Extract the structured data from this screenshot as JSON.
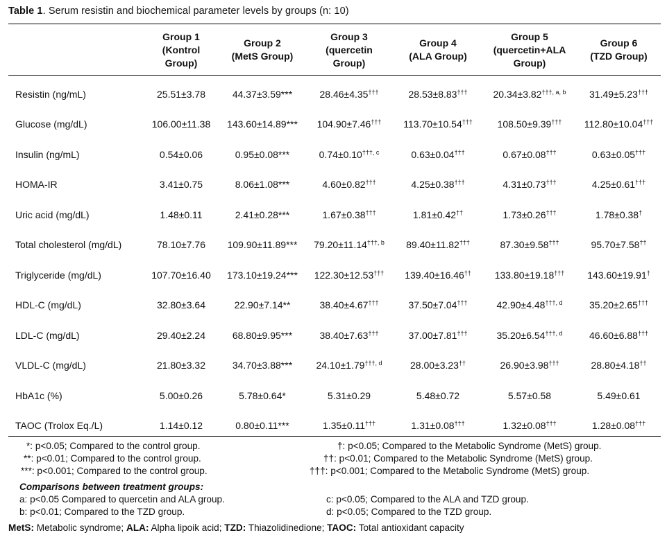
{
  "caption": {
    "label": "Table 1",
    "text": ". Serum resistin and biochemical parameter levels by groups (n: 10)"
  },
  "headers": [
    {
      "lines": [
        ""
      ]
    },
    {
      "lines": [
        "Group 1",
        "(Kontrol",
        "Group)"
      ]
    },
    {
      "lines": [
        "Group 2",
        "(MetS Group)"
      ]
    },
    {
      "lines": [
        "Group 3",
        "(quercetin",
        "Group)"
      ]
    },
    {
      "lines": [
        "Group 4",
        "(ALA Group)"
      ]
    },
    {
      "lines": [
        "Group 5",
        "(quercetin+ALA",
        "Group)"
      ]
    },
    {
      "lines": [
        "Group 6",
        "(TZD Group)"
      ]
    }
  ],
  "rows": [
    {
      "param": "Resistin (ng/mL)",
      "cells": [
        {
          "v": "25.51±3.78",
          "s": ""
        },
        {
          "v": "44.37±3.59***",
          "s": ""
        },
        {
          "v": "28.46±4.35",
          "s": "†††"
        },
        {
          "v": "28.53±8.83",
          "s": "†††"
        },
        {
          "v": "20.34±3.82",
          "s": "†††, a, b"
        },
        {
          "v": "31.49±5.23",
          "s": "†††"
        }
      ]
    },
    {
      "param": "Glucose (mg/dL)",
      "cells": [
        {
          "v": "106.00±11.38",
          "s": ""
        },
        {
          "v": "143.60±14.89***",
          "s": ""
        },
        {
          "v": "104.90±7.46",
          "s": "†††"
        },
        {
          "v": "113.70±10.54",
          "s": "†††"
        },
        {
          "v": "108.50±9.39",
          "s": "†††"
        },
        {
          "v": "112.80±10.04",
          "s": "†††"
        }
      ]
    },
    {
      "param": "Insulin (ng/mL)",
      "cells": [
        {
          "v": "0.54±0.06",
          "s": ""
        },
        {
          "v": "0.95±0.08***",
          "s": ""
        },
        {
          "v": "0.74±0.10",
          "s": "†††, c"
        },
        {
          "v": "0.63±0.04",
          "s": "†††"
        },
        {
          "v": "0.67±0.08",
          "s": "†††"
        },
        {
          "v": "0.63±0.05",
          "s": "†††"
        }
      ]
    },
    {
      "param": "HOMA-IR",
      "cells": [
        {
          "v": "3.41±0.75",
          "s": ""
        },
        {
          "v": "8.06±1.08***",
          "s": ""
        },
        {
          "v": "4.60±0.82",
          "s": "†††"
        },
        {
          "v": "4.25±0.38",
          "s": "†††"
        },
        {
          "v": "4.31±0.73",
          "s": "†††"
        },
        {
          "v": "4.25±0.61",
          "s": "†††"
        }
      ]
    },
    {
      "param": "Uric acid (mg/dL)",
      "cells": [
        {
          "v": "1.48±0.11",
          "s": ""
        },
        {
          "v": "2.41±0.28***",
          "s": ""
        },
        {
          "v": "1.67±0.38",
          "s": "†††"
        },
        {
          "v": "1.81±0.42",
          "s": "††"
        },
        {
          "v": "1.73±0.26",
          "s": "†††"
        },
        {
          "v": "1.78±0.38",
          "s": "†"
        }
      ]
    },
    {
      "param": "Total cholesterol (mg/dL)",
      "cells": [
        {
          "v": "78.10±7.76",
          "s": ""
        },
        {
          "v": "109.90±11.89***",
          "s": ""
        },
        {
          "v": "79.20±11.14",
          "s": "†††, b"
        },
        {
          "v": "89.40±11.82",
          "s": "†††"
        },
        {
          "v": "87.30±9.58",
          "s": "†††"
        },
        {
          "v": "95.70±7.58",
          "s": "††"
        }
      ]
    },
    {
      "param": "Triglyceride (mg/dL)",
      "cells": [
        {
          "v": "107.70±16.40",
          "s": ""
        },
        {
          "v": "173.10±19.24***",
          "s": ""
        },
        {
          "v": "122.30±12.53",
          "s": "†††"
        },
        {
          "v": "139.40±16.46",
          "s": "††"
        },
        {
          "v": "133.80±19.18",
          "s": "†††"
        },
        {
          "v": "143.60±19.91",
          "s": "†"
        }
      ]
    },
    {
      "param": "HDL-C (mg/dL)",
      "cells": [
        {
          "v": "32.80±3.64",
          "s": ""
        },
        {
          "v": "22.90±7.14**",
          "s": ""
        },
        {
          "v": "38.40±4.67",
          "s": "†††"
        },
        {
          "v": "37.50±7.04",
          "s": "†††"
        },
        {
          "v": "42.90±4.48",
          "s": "†††, d"
        },
        {
          "v": "35.20±2.65",
          "s": "†††"
        }
      ]
    },
    {
      "param": "LDL-C (mg/dL)",
      "cells": [
        {
          "v": "29.40±2.24",
          "s": ""
        },
        {
          "v": "68.80±9.95***",
          "s": ""
        },
        {
          "v": "38.40±7.63",
          "s": "†††"
        },
        {
          "v": "37.00±7.81",
          "s": "†††"
        },
        {
          "v": "35.20±6.54",
          "s": "†††, d"
        },
        {
          "v": "46.60±6.88",
          "s": "†††"
        }
      ]
    },
    {
      "param": "VLDL-C (mg/dL)",
      "cells": [
        {
          "v": "21.80±3.32",
          "s": ""
        },
        {
          "v": "34.70±3.88***",
          "s": ""
        },
        {
          "v": "24.10±1.79",
          "s": "†††, d"
        },
        {
          "v": "28.00±3.23",
          "s": "††"
        },
        {
          "v": "26.90±3.98",
          "s": "†††"
        },
        {
          "v": "28.80±4.18",
          "s": "††"
        }
      ]
    },
    {
      "param": "HbA1c (%)",
      "cells": [
        {
          "v": "5.00±0.26",
          "s": ""
        },
        {
          "v": "5.78±0.64*",
          "s": ""
        },
        {
          "v": "5.31±0.29",
          "s": ""
        },
        {
          "v": "5.48±0.72",
          "s": ""
        },
        {
          "v": "5.57±0.58",
          "s": ""
        },
        {
          "v": "5.49±0.61",
          "s": ""
        }
      ]
    },
    {
      "param": "TAOC (Trolox Eq./L)",
      "cells": [
        {
          "v": "1.14±0.12",
          "s": ""
        },
        {
          "v": "0.80±0.11***",
          "s": ""
        },
        {
          "v": "1.35±0.11",
          "s": "†††"
        },
        {
          "v": "1.31±0.08",
          "s": "†††"
        },
        {
          "v": "1.32±0.08",
          "s": "†††"
        },
        {
          "v": "1.28±0.08",
          "s": "†††"
        }
      ]
    }
  ],
  "footnotes": {
    "left": [
      "*:  p<0.05; Compared to the control group.",
      "**:  p<0.01; Compared to the control group.",
      "***:  p<0.001; Compared to the control group."
    ],
    "right": [
      "†: p<0.05; Compared to the Metabolic Syndrome (MetS) group.",
      "††: p<0.01; Compared to the Metabolic Syndrome (MetS) group.",
      "†††: p<0.001; Compared to the Metabolic Syndrome (MetS) group."
    ],
    "comparisons_title": "Comparisons between treatment groups:",
    "comparisons": [
      "a: p<0.05 Compared to quercetin and ALA group.",
      "c: p<0.05; Compared to the ALA and TZD group.",
      "b: p<0.01; Compared to the TZD group.",
      "d: p<0.05; Compared to the TZD group."
    ]
  },
  "abbreviations": [
    {
      "term": "MetS:",
      "def": " Metabolic syndrome;  "
    },
    {
      "term": "ALA:",
      "def": " Alpha lipoik acid;  "
    },
    {
      "term": "TZD:",
      "def": " Thiazolidinedione;  "
    },
    {
      "term": "TAOC:",
      "def": "  Total antioxidant capacity"
    }
  ]
}
